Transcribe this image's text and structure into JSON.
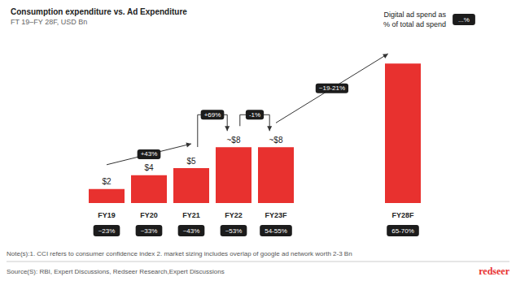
{
  "chart_data": {
    "type": "bar",
    "title": "Consumption expenditure vs. Ad Expenditure",
    "subtitle": "FT 19–FY 28F, USD Bn",
    "categories": [
      "FY19",
      "FY20",
      "FY21",
      "FY22",
      "FY23F",
      null,
      null,
      "FY28F"
    ],
    "values": [
      2,
      4,
      5,
      8,
      8,
      null,
      null,
      20
    ],
    "value_labels": [
      "$2",
      "$4",
      "$5",
      "~$8",
      "~$8",
      null,
      null,
      null
    ],
    "color": "#e8312f",
    "ylim": [
      0,
      22
    ],
    "tick_labels": "x",
    "grid": false,
    "data_labels": true,
    "digital_share_title": "Digital ad spend as\n% of total ad spend",
    "digital_share_placeholder": "...%",
    "digital_share": [
      "~23%",
      "~33%",
      "~43%",
      "~53%",
      "54-55%",
      null,
      null,
      "65-70%"
    ],
    "growth": [
      {
        "from": "FY19",
        "to": "FY21",
        "label": "+43%"
      },
      {
        "from": "FY21",
        "to": "FY22",
        "label": "+69%"
      },
      {
        "from": "FY22",
        "to": "FY23F",
        "label": "-1%"
      },
      {
        "from": "FY23F",
        "to": "FY28F",
        "label": "~19-21%"
      }
    ],
    "note": "Note(s):1. CCI refers to consumer confidence index 2. market sizing includes overlap of google ad network worth 2-3 Bn",
    "source": "Source(S): RBI, Expert Discussions, Redseer Research,Expert Discussions",
    "logo": "redseer"
  }
}
